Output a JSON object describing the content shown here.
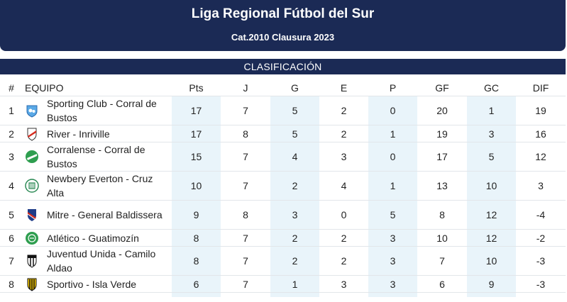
{
  "header": {
    "title": "Liga Regional Fútbol del Sur",
    "subtitle": "Cat.2010 Clausura 2023"
  },
  "section_title": "CLASIFICACIÓN",
  "columns": {
    "pos": "#",
    "team": "EQUIPO",
    "pts": "Pts",
    "j": "J",
    "g": "G",
    "e": "E",
    "p": "P",
    "gf": "GF",
    "gc": "GC",
    "dif": "DIF"
  },
  "rows": [
    {
      "pos": "1",
      "team": "Sporting Club - Corral de Bustos",
      "crest": "sporting-club-crest-icon",
      "pts": "17",
      "j": "7",
      "g": "5",
      "e": "2",
      "p": "0",
      "gf": "20",
      "gc": "1",
      "dif": "19"
    },
    {
      "pos": "2",
      "team": "River - Inriville",
      "crest": "river-crest-icon",
      "pts": "17",
      "j": "8",
      "g": "5",
      "e": "2",
      "p": "1",
      "gf": "19",
      "gc": "3",
      "dif": "16"
    },
    {
      "pos": "3",
      "team": "Corralense - Corral de Bustos",
      "crest": "corralense-crest-icon",
      "pts": "15",
      "j": "7",
      "g": "4",
      "e": "3",
      "p": "0",
      "gf": "17",
      "gc": "5",
      "dif": "12"
    },
    {
      "pos": "4",
      "team": "Newbery Everton - Cruz Alta",
      "crest": "newbery-everton-crest-icon",
      "pts": "10",
      "j": "7",
      "g": "2",
      "e": "4",
      "p": "1",
      "gf": "13",
      "gc": "10",
      "dif": "3"
    },
    {
      "pos": "5",
      "team": "Mitre - General Baldissera",
      "crest": "mitre-crest-icon",
      "pts": "9",
      "j": "8",
      "g": "3",
      "e": "0",
      "p": "5",
      "gf": "8",
      "gc": "12",
      "dif": "-4"
    },
    {
      "pos": "6",
      "team": "Atlético - Guatimozín",
      "crest": "atletico-guatimozin-crest-icon",
      "pts": "8",
      "j": "7",
      "g": "2",
      "e": "2",
      "p": "3",
      "gf": "10",
      "gc": "12",
      "dif": "-2"
    },
    {
      "pos": "7",
      "team": "Juventud Unida - Camilo Aldao",
      "crest": "juventud-unida-crest-icon",
      "pts": "8",
      "j": "7",
      "g": "2",
      "e": "2",
      "p": "3",
      "gf": "7",
      "gc": "10",
      "dif": "-3"
    },
    {
      "pos": "8",
      "team": "Sportivo - Isla Verde",
      "crest": "sportivo-crest-icon",
      "pts": "6",
      "j": "7",
      "g": "1",
      "e": "3",
      "p": "3",
      "gf": "6",
      "gc": "9",
      "dif": "-3"
    }
  ]
}
